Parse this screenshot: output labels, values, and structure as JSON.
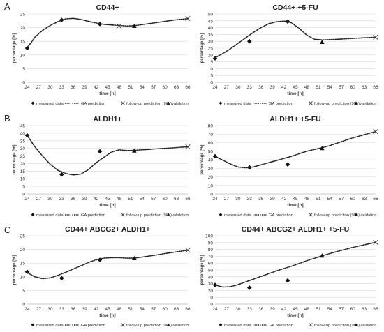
{
  "figure": {
    "row_labels": [
      "A",
      "B",
      "C"
    ]
  },
  "chart_data": [
    {
      "type": "line",
      "title": "CD44+",
      "xlabel": "time [h]",
      "ylabel": "percentage [%]",
      "xticks": [
        24,
        27,
        30,
        33,
        36,
        39,
        42,
        45,
        48,
        51,
        54,
        57,
        60,
        63,
        66
      ],
      "ylim": [
        0,
        25
      ],
      "yticks": [
        0,
        5,
        10,
        15,
        20,
        25
      ],
      "grid": true,
      "legend": [
        "measured data",
        "GA prediction",
        "follow-up prediction (96h)",
        "validation"
      ],
      "legend_position": "bottom",
      "series": [
        {
          "name": "measured data",
          "marker": "diamond",
          "style": "points",
          "x": [
            24,
            33,
            43
          ],
          "y": [
            12.5,
            22.8,
            21.3
          ]
        },
        {
          "name": "GA prediction",
          "marker": "none",
          "style": "dotted",
          "x": [
            24,
            25,
            26,
            28,
            30,
            32,
            34,
            36,
            38,
            40,
            42,
            44,
            46,
            48,
            50,
            52,
            54,
            56,
            58,
            60,
            62,
            64,
            66
          ],
          "y": [
            12.8,
            14.5,
            16.5,
            19.0,
            20.8,
            22.2,
            23.2,
            23.4,
            23.0,
            22.3,
            21.7,
            21.2,
            21.0,
            20.8,
            20.6,
            20.7,
            21.1,
            21.5,
            21.9,
            22.3,
            22.7,
            23.0,
            23.3
          ]
        },
        {
          "name": "follow-up prediction (96h)",
          "marker": "x",
          "style": "points",
          "x": [
            48,
            66
          ],
          "y": [
            20.6,
            23.3
          ]
        },
        {
          "name": "validation",
          "marker": "triangle",
          "style": "points",
          "x": [
            52
          ],
          "y": [
            20.6
          ]
        }
      ]
    },
    {
      "type": "line",
      "title": "CD44+ +5-FU",
      "xlabel": "time [h]",
      "ylabel": "percentage [%]",
      "xticks": [
        24,
        27,
        30,
        33,
        36,
        39,
        42,
        45,
        48,
        51,
        54,
        57,
        60,
        63,
        66
      ],
      "ylim": [
        0,
        50
      ],
      "yticks": [
        0,
        5,
        10,
        15,
        20,
        25,
        30,
        35,
        40,
        45,
        50
      ],
      "grid": true,
      "legend": [
        "measured data",
        "GA prediction",
        "follow-up prediction (96h)",
        "validation"
      ],
      "legend_position": "bottom",
      "series": [
        {
          "name": "measured data",
          "marker": "diamond",
          "style": "points",
          "x": [
            24,
            33,
            43
          ],
          "y": [
            17.5,
            30.0,
            44.5
          ]
        },
        {
          "name": "GA prediction",
          "marker": "none",
          "style": "dotted",
          "x": [
            24,
            26,
            28,
            30,
            32,
            34,
            36,
            38,
            40,
            42,
            43,
            44,
            46,
            48,
            50,
            52,
            54,
            56,
            58,
            60,
            62,
            64,
            66
          ],
          "y": [
            18.0,
            21.0,
            24.5,
            28.5,
            32.5,
            36.5,
            40.0,
            42.8,
            44.3,
            44.8,
            44.5,
            43.5,
            39.5,
            34.5,
            31.5,
            31.0,
            31.2,
            31.5,
            31.8,
            32.1,
            32.4,
            32.7,
            33.0
          ]
        },
        {
          "name": "follow-up prediction (96h)",
          "marker": "x",
          "style": "points",
          "x": [
            66
          ],
          "y": [
            33.0
          ]
        },
        {
          "name": "validation",
          "marker": "triangle",
          "style": "points",
          "x": [
            52
          ],
          "y": [
            29.5
          ]
        }
      ]
    },
    {
      "type": "line",
      "title": "ALDH1+",
      "xlabel": "time [h]",
      "ylabel": "percentage [%]",
      "xticks": [
        24,
        27,
        30,
        33,
        36,
        39,
        42,
        45,
        48,
        51,
        54,
        57,
        60,
        63,
        66
      ],
      "ylim": [
        0,
        45
      ],
      "yticks": [
        0,
        5,
        10,
        15,
        20,
        25,
        30,
        35,
        40,
        45
      ],
      "grid": true,
      "legend": [
        "measured data",
        "GA prediction",
        "follow-up prediction (96h)",
        "validation"
      ],
      "legend_position": "bottom",
      "series": [
        {
          "name": "measured data",
          "marker": "diamond",
          "style": "points",
          "x": [
            24,
            33,
            43
          ],
          "y": [
            38.5,
            12.8,
            28.0
          ]
        },
        {
          "name": "GA prediction",
          "marker": "none",
          "style": "dotted",
          "x": [
            24,
            26,
            28,
            30,
            32,
            34,
            36,
            38,
            40,
            42,
            44,
            46,
            48,
            50,
            52,
            54,
            56,
            58,
            60,
            62,
            64,
            66
          ],
          "y": [
            38.5,
            31.0,
            25.0,
            19.5,
            15.5,
            13.5,
            12.5,
            13.0,
            16.0,
            20.5,
            24.0,
            27.5,
            29.0,
            28.5,
            28.7,
            29.0,
            29.3,
            29.7,
            30.0,
            30.3,
            30.7,
            31.0
          ]
        },
        {
          "name": "follow-up prediction (96h)",
          "marker": "x",
          "style": "points",
          "x": [
            66
          ],
          "y": [
            31.0
          ]
        },
        {
          "name": "validation",
          "marker": "triangle",
          "style": "points",
          "x": [
            52
          ],
          "y": [
            28.5
          ]
        }
      ]
    },
    {
      "type": "line",
      "title": "ALDH1+ +5-FU",
      "xlabel": "time [h]",
      "ylabel": "percentage [%]",
      "xticks": [
        24,
        27,
        30,
        33,
        36,
        39,
        42,
        45,
        48,
        51,
        54,
        57,
        60,
        63,
        66
      ],
      "ylim": [
        0,
        80
      ],
      "yticks": [
        0,
        10,
        20,
        30,
        40,
        50,
        60,
        70,
        80
      ],
      "grid": true,
      "legend": [
        "measured data",
        "GA prediction",
        "follow-up prediction (96h)",
        "validation"
      ],
      "legend_position": "bottom",
      "series": [
        {
          "name": "measured data",
          "marker": "diamond",
          "style": "points",
          "x": [
            24,
            33,
            43
          ],
          "y": [
            44.0,
            31.0,
            34.5
          ]
        },
        {
          "name": "GA prediction",
          "marker": "none",
          "style": "dotted",
          "x": [
            24,
            26,
            28,
            30,
            32,
            34,
            36,
            38,
            40,
            42,
            44,
            46,
            48,
            50,
            52,
            54,
            56,
            58,
            60,
            62,
            64,
            66
          ],
          "y": [
            44.0,
            39.5,
            35.0,
            31.5,
            30.5,
            31.5,
            34.0,
            36.5,
            39.0,
            41.5,
            44.0,
            47.0,
            50.0,
            52.0,
            54.0,
            56.5,
            59.5,
            62.5,
            65.5,
            68.0,
            70.5,
            73.0
          ]
        },
        {
          "name": "follow-up prediction (96h)",
          "marker": "x",
          "style": "points",
          "x": [
            66
          ],
          "y": [
            73.0
          ]
        },
        {
          "name": "validation",
          "marker": "triangle",
          "style": "points",
          "x": [
            52
          ],
          "y": [
            53.5
          ]
        }
      ]
    },
    {
      "type": "line",
      "title": "CD44+ ABCG2+ ALDH1+",
      "xlabel": "time [h]",
      "ylabel": "percentage [%]",
      "xticks": [
        24,
        27,
        30,
        33,
        36,
        39,
        42,
        45,
        48,
        51,
        54,
        57,
        60,
        63,
        66
      ],
      "ylim": [
        0,
        25
      ],
      "yticks": [
        0,
        5,
        10,
        15,
        20,
        25
      ],
      "grid": true,
      "legend": [
        "measured data",
        "GA prediction",
        "follow-up prediction (96h)",
        "validation"
      ],
      "legend_position": "bottom",
      "series": [
        {
          "name": "measured data",
          "marker": "diamond",
          "style": "points",
          "x": [
            24,
            33,
            43
          ],
          "y": [
            11.8,
            9.5,
            16.2
          ]
        },
        {
          "name": "GA prediction",
          "marker": "none",
          "style": "dotted",
          "x": [
            24,
            26,
            28,
            30,
            32,
            34,
            36,
            38,
            40,
            42,
            44,
            46,
            48,
            50,
            52,
            54,
            56,
            58,
            60,
            62,
            64,
            66
          ],
          "y": [
            11.5,
            10.0,
            9.3,
            9.6,
            10.5,
            11.6,
            12.8,
            14.0,
            15.2,
            16.2,
            16.8,
            17.0,
            17.0,
            16.8,
            16.8,
            17.2,
            17.6,
            18.0,
            18.5,
            18.9,
            19.3,
            19.7
          ]
        },
        {
          "name": "follow-up prediction (96h)",
          "marker": "x",
          "style": "points",
          "x": [
            66
          ],
          "y": [
            19.7
          ]
        },
        {
          "name": "validation",
          "marker": "triangle",
          "style": "points",
          "x": [
            52
          ],
          "y": [
            16.8
          ]
        }
      ]
    },
    {
      "type": "line",
      "title": "CD44+ ABCG2+ ALDH1+ +5-FU",
      "xlabel": "time [h]",
      "ylabel": "percentage [%]",
      "xticks": [
        24,
        27,
        30,
        33,
        36,
        39,
        42,
        45,
        48,
        51,
        54,
        57,
        60,
        63,
        66
      ],
      "ylim": [
        0,
        100
      ],
      "yticks": [
        0,
        10,
        20,
        30,
        40,
        50,
        60,
        70,
        80,
        90,
        100
      ],
      "grid": true,
      "legend": [
        "measured data",
        "GA prediction",
        "follow-up prediction (96h)",
        "validation"
      ],
      "legend_position": "bottom",
      "series": [
        {
          "name": "measured data",
          "marker": "diamond",
          "style": "points",
          "x": [
            24,
            33,
            43
          ],
          "y": [
            28.0,
            24.0,
            34.5
          ]
        },
        {
          "name": "GA prediction",
          "marker": "none",
          "style": "dotted",
          "x": [
            24,
            26,
            28,
            30,
            32,
            34,
            36,
            38,
            40,
            42,
            44,
            46,
            48,
            50,
            52,
            54,
            56,
            58,
            60,
            62,
            64,
            66
          ],
          "y": [
            28.0,
            25.0,
            25.5,
            28.5,
            32.5,
            36.5,
            40.5,
            44.5,
            48.5,
            52.0,
            55.5,
            59.5,
            63.5,
            67.0,
            70.5,
            74.0,
            77.0,
            80.0,
            83.0,
            85.5,
            88.0,
            90.5
          ]
        },
        {
          "name": "follow-up prediction (96h)",
          "marker": "x",
          "style": "points",
          "x": [
            66
          ],
          "y": [
            90.5
          ]
        },
        {
          "name": "validation",
          "marker": "triangle",
          "style": "points",
          "x": [
            52
          ],
          "y": [
            71.0
          ]
        }
      ]
    }
  ]
}
